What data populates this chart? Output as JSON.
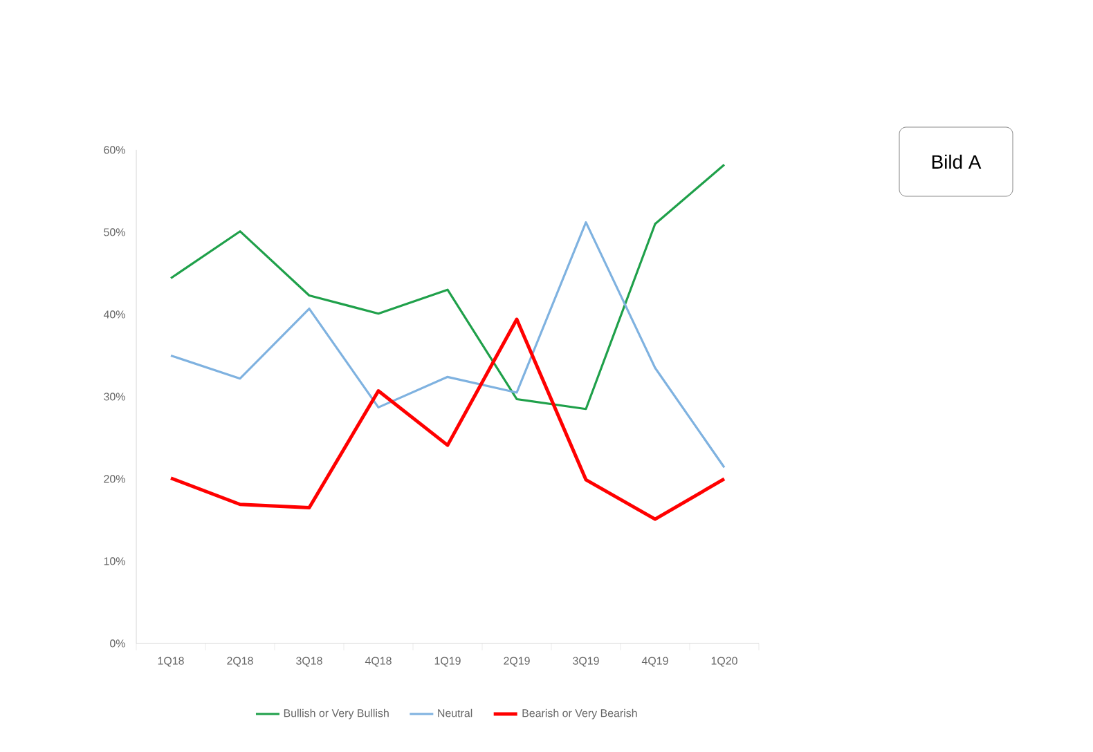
{
  "chart_data": {
    "type": "line",
    "categories": [
      "1Q18",
      "2Q18",
      "3Q18",
      "4Q18",
      "1Q19",
      "2Q19",
      "3Q19",
      "4Q19",
      "1Q20"
    ],
    "series": [
      {
        "name": "Bullish or Very Bullish",
        "color": "#1fa04a",
        "values": [
          44.4,
          50.1,
          42.3,
          40.1,
          43.0,
          29.7,
          28.5,
          51.0,
          58.2
        ]
      },
      {
        "name": "Neutral",
        "color": "#7fb2e0",
        "values": [
          35.0,
          32.2,
          40.7,
          28.7,
          32.4,
          30.5,
          51.2,
          33.5,
          21.4
        ]
      },
      {
        "name": "Bearish or Very Bearish",
        "color": "#ff0000",
        "values": [
          20.1,
          16.9,
          16.5,
          30.7,
          24.1,
          39.4,
          19.9,
          15.1,
          20.0
        ]
      }
    ],
    "ylim": [
      0,
      60
    ],
    "yticks": [
      {
        "value": 0,
        "label": "0%"
      },
      {
        "value": 10,
        "label": "10%"
      },
      {
        "value": 20,
        "label": "20%"
      },
      {
        "value": 30,
        "label": "30%"
      },
      {
        "value": 40,
        "label": "40%"
      },
      {
        "value": 50,
        "label": "50%"
      },
      {
        "value": 60,
        "label": "60%"
      }
    ],
    "legend": "bottom",
    "grid": false,
    "marker": "none",
    "line_style": "solid",
    "annotations": [
      "Bild A"
    ]
  }
}
